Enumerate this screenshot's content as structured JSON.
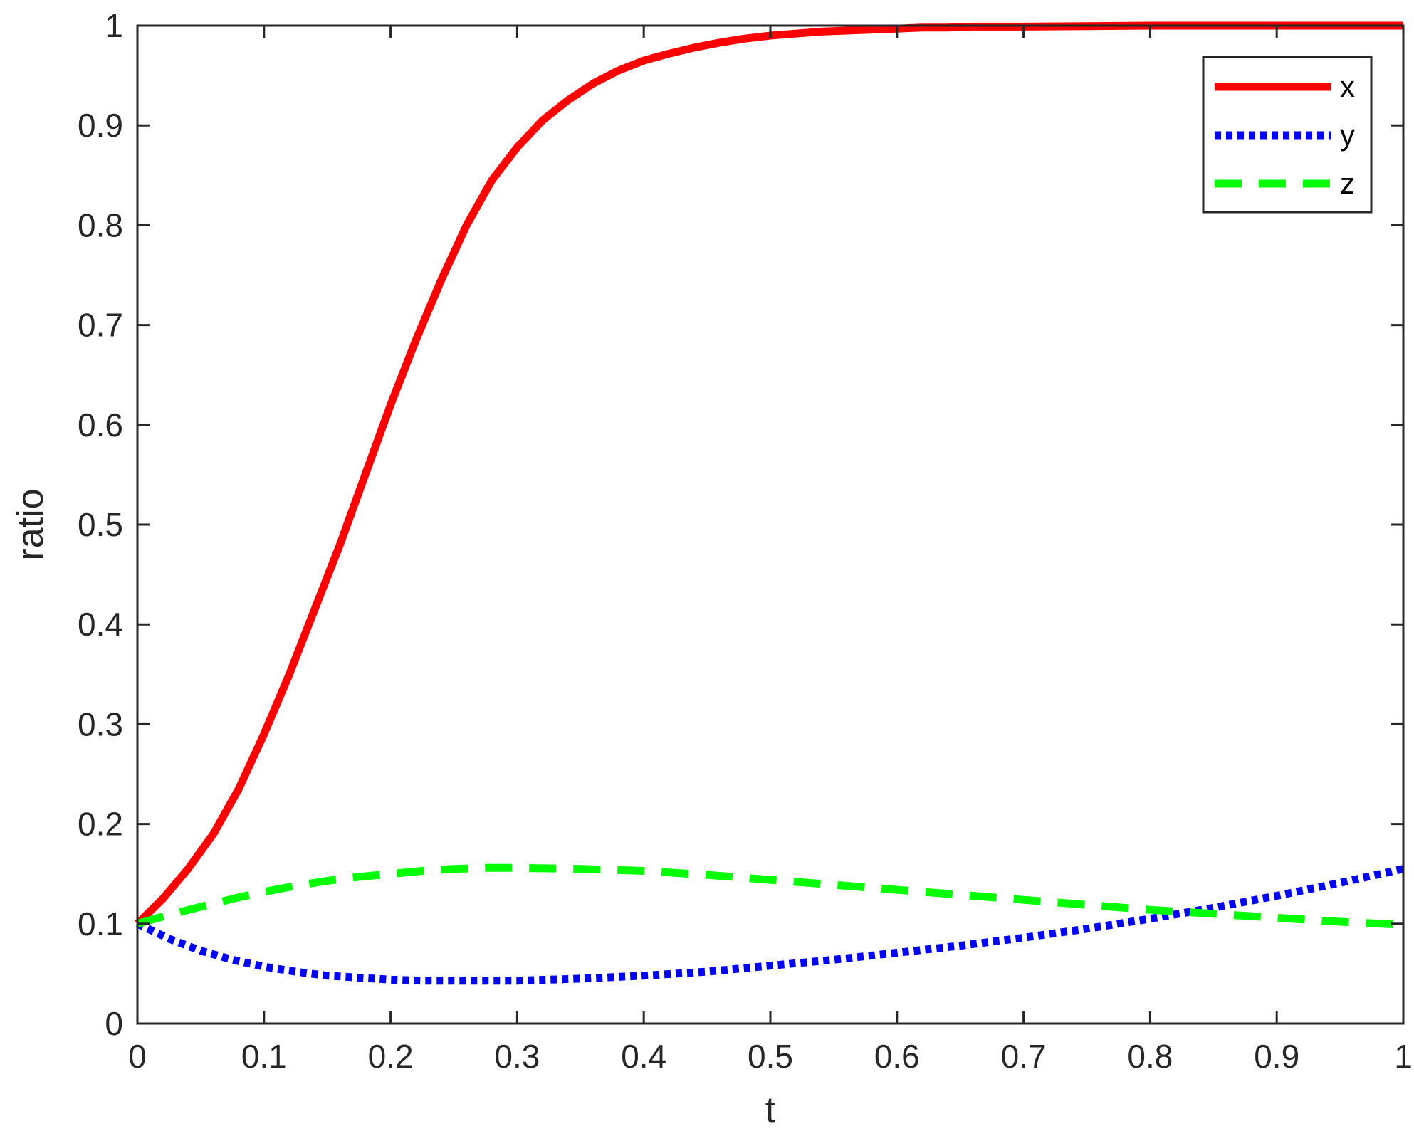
{
  "chart_data": {
    "type": "line",
    "title": "",
    "xlabel": "t",
    "ylabel": "ratio",
    "xlim": [
      0,
      1
    ],
    "ylim": [
      0,
      1
    ],
    "xticks": [
      "0",
      "0.1",
      "0.2",
      "0.3",
      "0.4",
      "0.5",
      "0.6",
      "0.7",
      "0.8",
      "0.9",
      "1"
    ],
    "yticks": [
      "0",
      "0.1",
      "0.2",
      "0.3",
      "0.4",
      "0.5",
      "0.6",
      "0.7",
      "0.8",
      "0.9",
      "1"
    ],
    "grid": false,
    "legend_position": "top-right",
    "series": [
      {
        "name": "x",
        "color": "#ff0000",
        "style": "solid",
        "x": [
          0,
          0.02,
          0.04,
          0.06,
          0.08,
          0.1,
          0.12,
          0.14,
          0.16,
          0.18,
          0.2,
          0.22,
          0.24,
          0.26,
          0.28,
          0.3,
          0.32,
          0.34,
          0.36,
          0.38,
          0.4,
          0.42,
          0.44,
          0.46,
          0.48,
          0.5,
          0.52,
          0.54,
          0.56,
          0.58,
          0.6,
          0.62,
          0.64,
          0.66,
          0.7,
          0.75,
          0.8,
          0.85,
          0.9,
          0.95,
          1
        ],
        "y": [
          0.1,
          0.125,
          0.155,
          0.19,
          0.235,
          0.29,
          0.35,
          0.415,
          0.48,
          0.55,
          0.62,
          0.685,
          0.745,
          0.8,
          0.845,
          0.878,
          0.905,
          0.925,
          0.942,
          0.955,
          0.965,
          0.972,
          0.978,
          0.983,
          0.987,
          0.99,
          0.992,
          0.994,
          0.995,
          0.996,
          0.997,
          0.998,
          0.998,
          0.999,
          0.999,
          0.9995,
          1,
          1,
          1,
          1,
          1
        ]
      },
      {
        "name": "y",
        "color": "#0000ff",
        "style": "dotted",
        "x": [
          0,
          0.025,
          0.05,
          0.075,
          0.1,
          0.125,
          0.15,
          0.175,
          0.2,
          0.225,
          0.25,
          0.275,
          0.3,
          0.35,
          0.4,
          0.45,
          0.5,
          0.55,
          0.6,
          0.65,
          0.7,
          0.75,
          0.8,
          0.85,
          0.9,
          0.95,
          1
        ],
        "y": [
          0.1,
          0.085,
          0.073,
          0.064,
          0.057,
          0.052,
          0.048,
          0.046,
          0.044,
          0.043,
          0.043,
          0.043,
          0.043,
          0.045,
          0.048,
          0.052,
          0.058,
          0.064,
          0.071,
          0.078,
          0.086,
          0.095,
          0.105,
          0.116,
          0.128,
          0.141,
          0.155
        ]
      },
      {
        "name": "z",
        "color": "#00ff00",
        "style": "dashed",
        "x": [
          0,
          0.025,
          0.05,
          0.075,
          0.1,
          0.125,
          0.15,
          0.175,
          0.2,
          0.225,
          0.25,
          0.275,
          0.3,
          0.35,
          0.4,
          0.45,
          0.5,
          0.55,
          0.6,
          0.65,
          0.7,
          0.75,
          0.8,
          0.85,
          0.9,
          0.95,
          1
        ],
        "y": [
          0.1,
          0.109,
          0.117,
          0.125,
          0.132,
          0.138,
          0.143,
          0.147,
          0.15,
          0.153,
          0.155,
          0.156,
          0.156,
          0.155,
          0.153,
          0.149,
          0.144,
          0.139,
          0.134,
          0.129,
          0.124,
          0.119,
          0.114,
          0.11,
          0.106,
          0.102,
          0.099
        ]
      }
    ]
  }
}
